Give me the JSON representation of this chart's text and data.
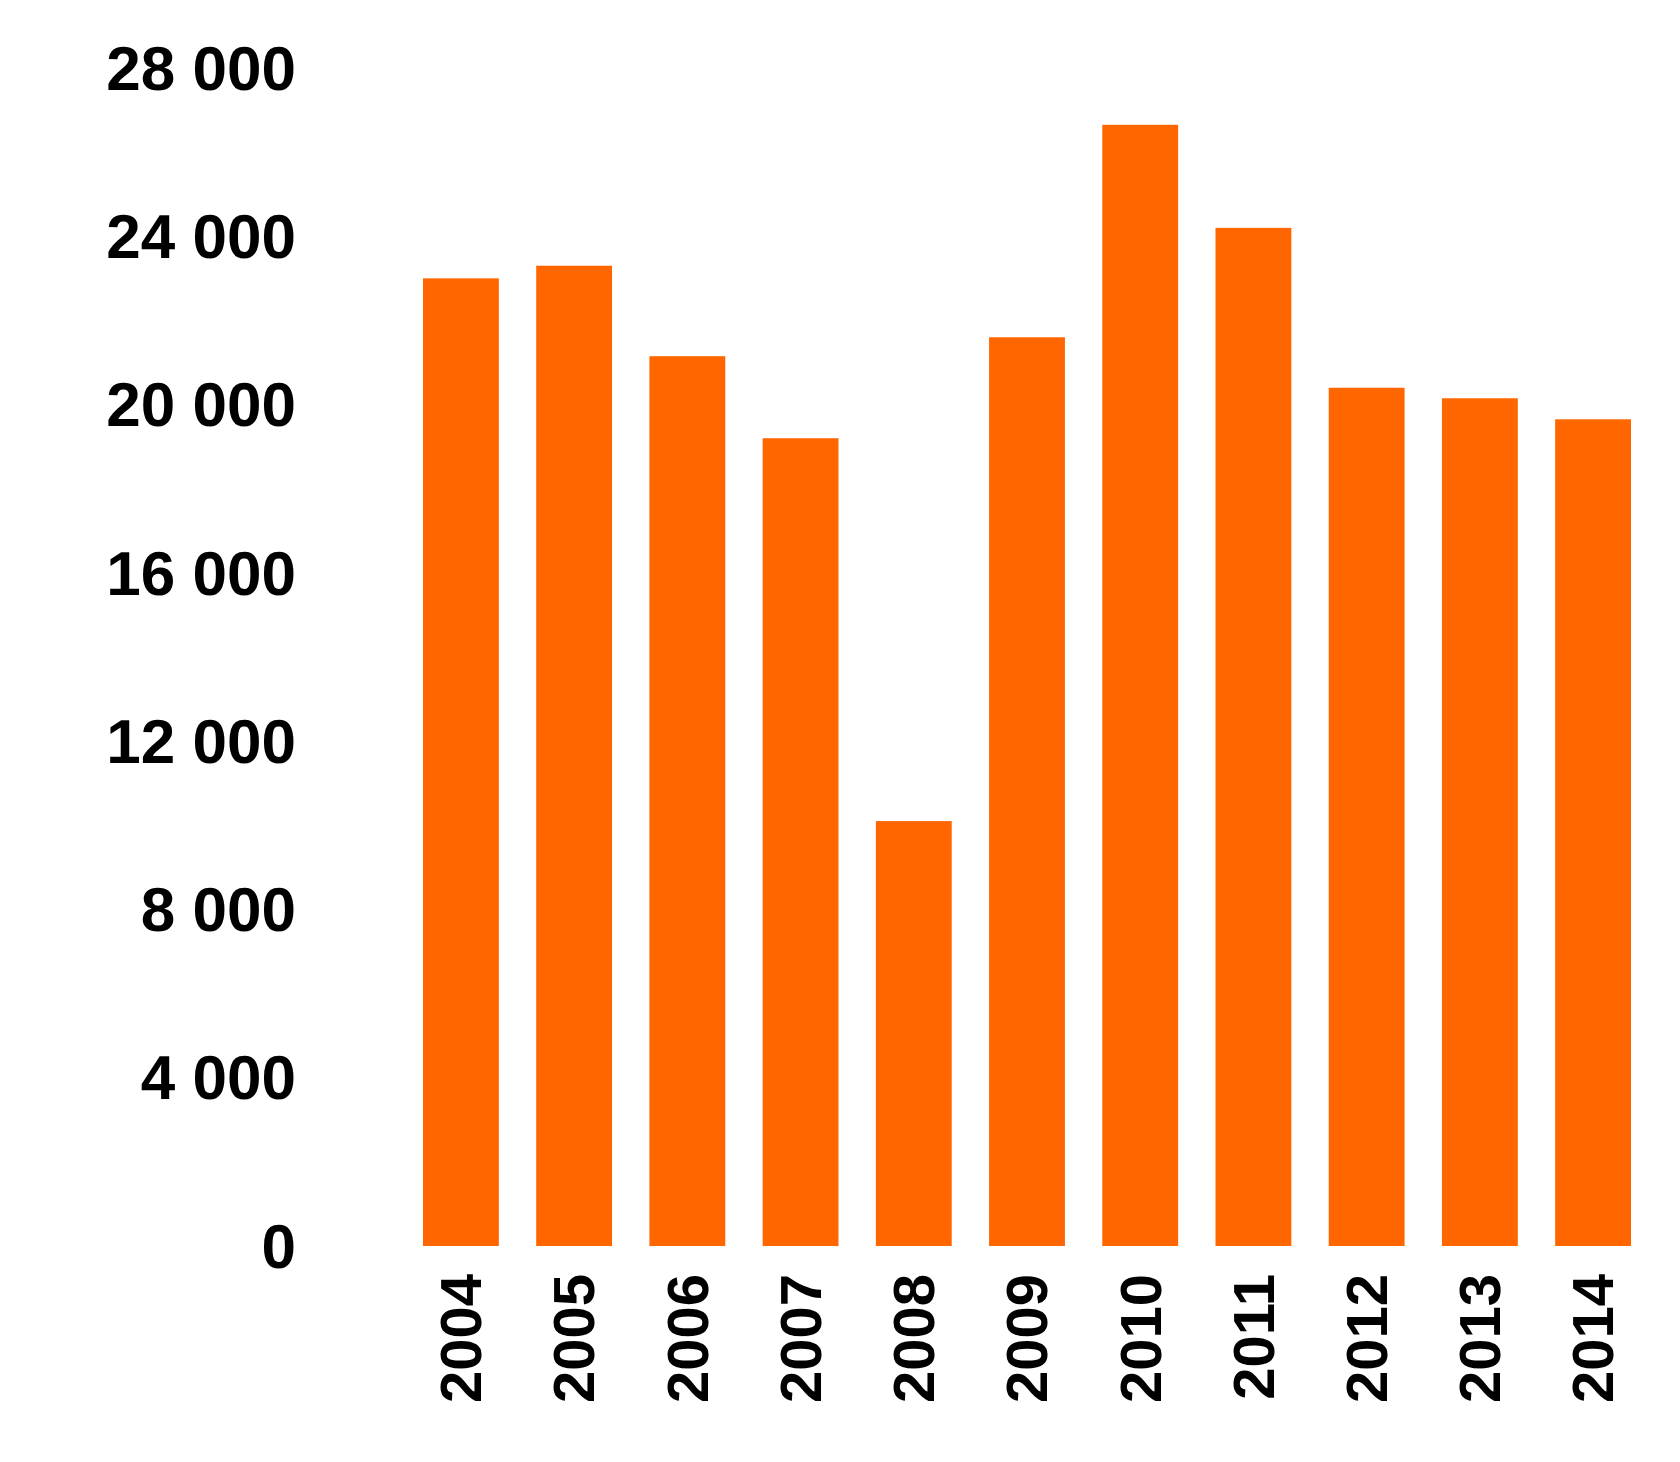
{
  "chart_data": {
    "type": "bar",
    "categories": [
      "2004",
      "2005",
      "2006",
      "2007",
      "2008",
      "2009",
      "2010",
      "2011",
      "2012",
      "2013",
      "2014"
    ],
    "values": [
      23000,
      23300,
      21150,
      19200,
      10100,
      21600,
      26650,
      24200,
      20400,
      20150,
      19650
    ],
    "color": "#ff6600",
    "ylim": [
      0,
      28000
    ],
    "yticks": [
      {
        "value": 0,
        "label": "0"
      },
      {
        "value": 4000,
        "label": "4 000"
      },
      {
        "value": 8000,
        "label": "8 000"
      },
      {
        "value": 12000,
        "label": "12 000"
      },
      {
        "value": 16000,
        "label": "16 000"
      },
      {
        "value": 20000,
        "label": "20 000"
      },
      {
        "value": 24000,
        "label": "24 000"
      },
      {
        "value": 28000,
        "label": "28 000"
      }
    ],
    "grid": false
  }
}
